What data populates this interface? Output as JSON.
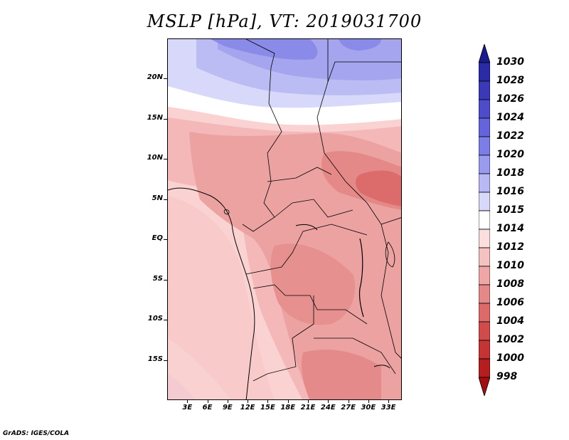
{
  "title": "MSLP [hPa], VT: 2019031700",
  "footer": "GrADS: IGES/COLA",
  "map": {
    "lon_range": [
      0,
      35
    ],
    "lat_range": [
      -20,
      25
    ],
    "y_ticks": [
      {
        "lat": 20,
        "label": "20N"
      },
      {
        "lat": 15,
        "label": "15N"
      },
      {
        "lat": 10,
        "label": "10N"
      },
      {
        "lat": 5,
        "label": "5N"
      },
      {
        "lat": 0,
        "label": "EQ"
      },
      {
        "lat": -5,
        "label": "5S"
      },
      {
        "lat": -10,
        "label": "10S"
      },
      {
        "lat": -15,
        "label": "15S"
      }
    ],
    "x_ticks": [
      {
        "lon": 3,
        "label": "3E"
      },
      {
        "lon": 6,
        "label": "6E"
      },
      {
        "lon": 9,
        "label": "9E"
      },
      {
        "lon": 12,
        "label": "12E"
      },
      {
        "lon": 15,
        "label": "15E"
      },
      {
        "lon": 18,
        "label": "18E"
      },
      {
        "lon": 21,
        "label": "21E"
      },
      {
        "lon": 24,
        "label": "24E"
      },
      {
        "lon": 27,
        "label": "27E"
      },
      {
        "lon": 30,
        "label": "30E"
      },
      {
        "lon": 33,
        "label": "33E"
      }
    ]
  },
  "colorbar": {
    "labels": [
      "1030",
      "1028",
      "1026",
      "1024",
      "1022",
      "1020",
      "1018",
      "1016",
      "1015",
      "1014",
      "1012",
      "1010",
      "1008",
      "1006",
      "1004",
      "1002",
      "1000",
      "998"
    ],
    "colors": [
      "#1a1a8c",
      "#2b2ba6",
      "#3a3ab8",
      "#4d4dcc",
      "#6464dd",
      "#7d7de6",
      "#9a9aee",
      "#b8b8f5",
      "#d8d8fb",
      "#ffffff",
      "#fbdede",
      "#f5c2c2",
      "#eea6a6",
      "#e58888",
      "#dc6a6a",
      "#d04c4c",
      "#c33434",
      "#b41e1e",
      "#a00f0f"
    ]
  }
}
